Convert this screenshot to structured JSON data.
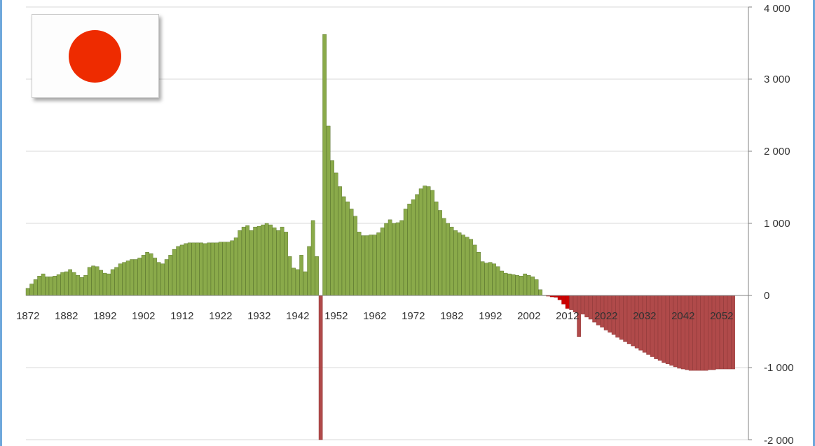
{
  "chart_data": {
    "type": "bar",
    "title": "",
    "xlabel": "",
    "ylabel": "",
    "ylim": [
      -2000,
      4000
    ],
    "y_ticks": [
      -2000,
      -1000,
      0,
      1000,
      2000,
      3000,
      4000
    ],
    "y_tick_labels": [
      "-2 000",
      "-1 000",
      "0",
      "1 000",
      "2 000",
      "3 000",
      "4 000"
    ],
    "x_tick_labels": [
      "1872",
      "1882",
      "1892",
      "1902",
      "1912",
      "1922",
      "1932",
      "1942",
      "1952",
      "1962",
      "1972",
      "1982",
      "1992",
      "2002",
      "2012",
      "2022",
      "2032",
      "2042",
      "2052"
    ],
    "x_start": 1872,
    "x_end": 2055,
    "grid": "horizontal",
    "positive_color": "#8aaa4a",
    "negative_color_highlight": "#cc0000",
    "negative_color_projection": "#b04a4a",
    "values": [
      100,
      160,
      220,
      270,
      300,
      260,
      260,
      270,
      290,
      320,
      330,
      360,
      320,
      280,
      250,
      280,
      390,
      410,
      400,
      350,
      310,
      300,
      360,
      390,
      440,
      460,
      480,
      500,
      500,
      520,
      560,
      600,
      580,
      520,
      460,
      440,
      500,
      560,
      640,
      680,
      700,
      720,
      730,
      730,
      730,
      730,
      720,
      730,
      730,
      730,
      740,
      740,
      740,
      760,
      800,
      900,
      950,
      970,
      900,
      950,
      960,
      980,
      1000,
      980,
      940,
      900,
      950,
      880,
      540,
      380,
      360,
      560,
      330,
      680,
      1040,
      540,
      -2000,
      3620,
      2350,
      1870,
      1700,
      1510,
      1370,
      1300,
      1200,
      1100,
      880,
      830,
      830,
      840,
      840,
      870,
      940,
      1000,
      1050,
      1000,
      1010,
      1040,
      1200,
      1270,
      1330,
      1400,
      1480,
      1520,
      1510,
      1460,
      1300,
      1180,
      1070,
      1000,
      950,
      900,
      870,
      840,
      810,
      780,
      700,
      600,
      470,
      450,
      460,
      440,
      400,
      340,
      310,
      300,
      290,
      280,
      270,
      300,
      280,
      260,
      220,
      80,
      5,
      -10,
      -20,
      -25,
      -60,
      -120,
      -180,
      -200,
      -230,
      -570,
      -260,
      -300,
      -330,
      -370,
      -410,
      -440,
      -480,
      -510,
      -540,
      -580,
      -610,
      -640,
      -670,
      -700,
      -730,
      -760,
      -790,
      -820,
      -850,
      -880,
      -900,
      -930,
      -950,
      -970,
      -990,
      -1010,
      -1020,
      -1030,
      -1040,
      -1040,
      -1040,
      -1040,
      -1040,
      -1030,
      -1030,
      -1020,
      -1020,
      -1020,
      -1020,
      -1020
    ],
    "highlight_negative_years": [
      1944,
      2005,
      2006,
      2007,
      2008,
      2009,
      2010,
      2011,
      2012
    ]
  },
  "flag": {
    "icon": "japan-flag-icon",
    "disc_color": "#ee2b00"
  }
}
